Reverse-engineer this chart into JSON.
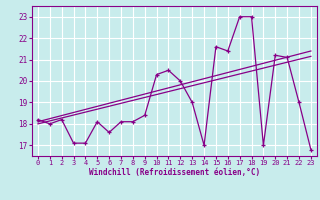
{
  "xlabel": "Windchill (Refroidissement éolien,°C)",
  "background_color": "#c8ecec",
  "line_color": "#880088",
  "grid_color": "#ffffff",
  "xlim": [
    -0.5,
    23.5
  ],
  "ylim": [
    16.5,
    23.5
  ],
  "yticks": [
    17,
    18,
    19,
    20,
    21,
    22,
    23
  ],
  "xticks": [
    0,
    1,
    2,
    3,
    4,
    5,
    6,
    7,
    8,
    9,
    10,
    11,
    12,
    13,
    14,
    15,
    16,
    17,
    18,
    19,
    20,
    21,
    22,
    23
  ],
  "hours": [
    0,
    1,
    2,
    3,
    4,
    5,
    6,
    7,
    8,
    9,
    10,
    11,
    12,
    13,
    14,
    15,
    16,
    17,
    18,
    19,
    20,
    21,
    22,
    23
  ],
  "temp_line": [
    18.2,
    18.0,
    18.2,
    17.1,
    17.1,
    18.1,
    17.6,
    18.1,
    18.1,
    18.4,
    20.3,
    20.5,
    20.0,
    19.0,
    17.0,
    21.6,
    21.4,
    23.0,
    23.0,
    17.0,
    21.2,
    21.1,
    19.0,
    16.8
  ],
  "trend1_x0": 0,
  "trend1_y0": 18.0,
  "trend1_x1": 23,
  "trend1_y1": 21.15,
  "trend2_x0": 0,
  "trend2_y0": 18.1,
  "trend2_x1": 23,
  "trend2_y1": 21.4
}
